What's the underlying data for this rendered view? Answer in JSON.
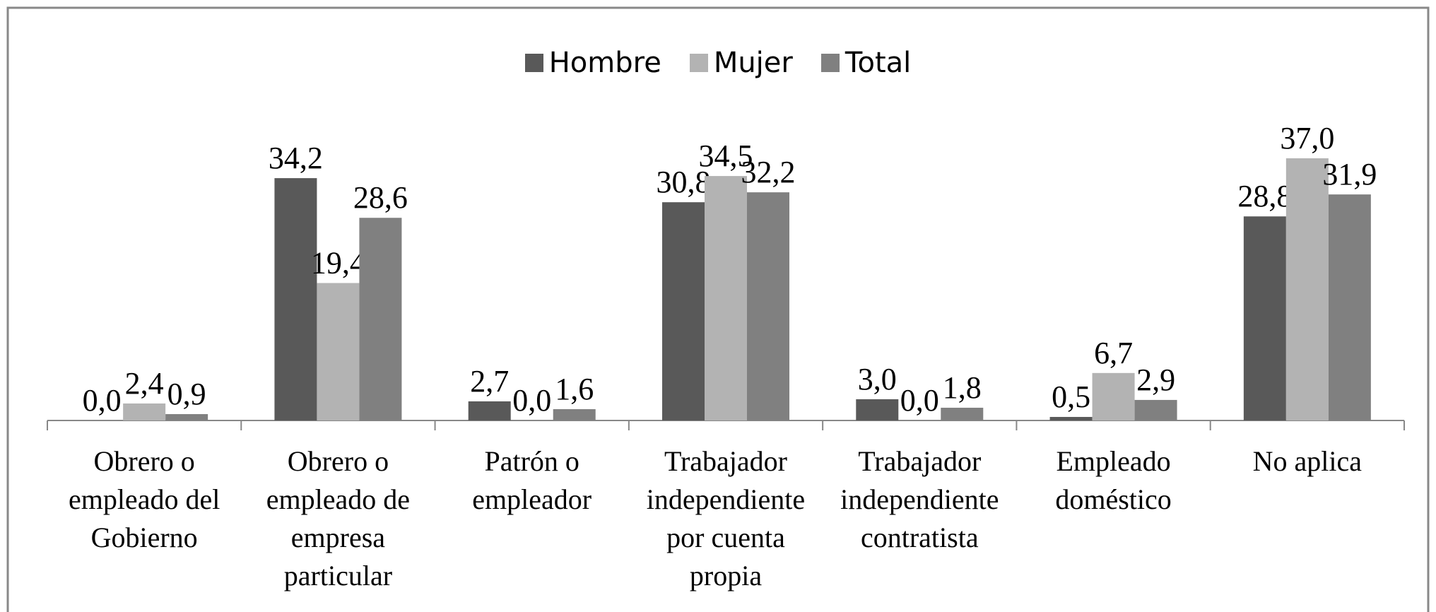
{
  "chart_data": {
    "type": "bar",
    "categories": [
      "Obrero o empleado del Gobierno",
      "Obrero o empleado de empresa particular",
      "Patrón o empleador",
      "Trabajador independiente por cuenta propia",
      "Trabajador independiente contratista",
      "Empleado doméstico",
      "No aplica"
    ],
    "series": [
      {
        "name": "Hombre",
        "color": "#595959",
        "values": [
          0.0,
          34.2,
          2.7,
          30.8,
          3.0,
          0.5,
          28.8
        ],
        "value_labels": [
          "0,0",
          "34,2",
          "2,7",
          "30,8",
          "3,0",
          "0,5",
          "28,8"
        ]
      },
      {
        "name": "Mujer",
        "color": "#b3b3b3",
        "values": [
          2.4,
          19.4,
          0.0,
          34.5,
          0.0,
          6.7,
          37.0
        ],
        "value_labels": [
          "2,4",
          "19,4",
          "0,0",
          "34,5",
          "0,0",
          "6,7",
          "37,0"
        ]
      },
      {
        "name": "Total",
        "color": "#808080",
        "values": [
          0.9,
          28.6,
          1.6,
          32.2,
          1.8,
          2.9,
          31.9
        ],
        "value_labels": [
          "0,9",
          "28,6",
          "1,6",
          "32,2",
          "1,8",
          "2,9",
          "31,9"
        ]
      }
    ],
    "legend": "top"
  }
}
